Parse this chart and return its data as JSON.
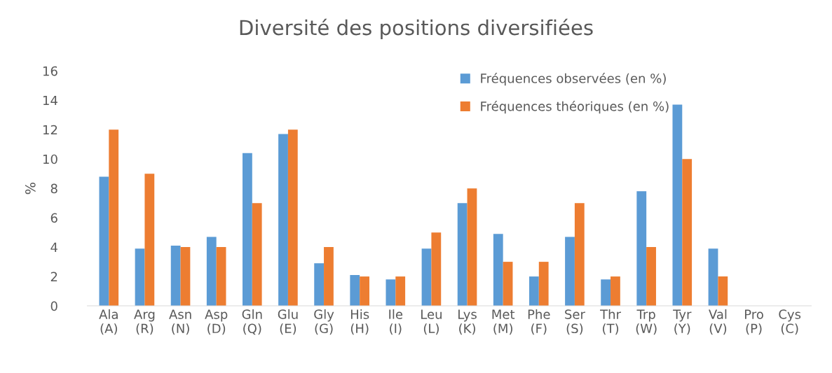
{
  "chart_data": {
    "type": "bar",
    "title": "Diversité des positions diversifiées",
    "ylabel": "%",
    "categories": [
      "Ala\n(A)",
      "Arg\n(R)",
      "Asn\n(N)",
      "Asp\n(D)",
      "Gln\n(Q)",
      "Glu\n(E)",
      "Gly\n(G)",
      "His\n(H)",
      "Ile\n(I)",
      "Leu\n(L)",
      "Lys\n(K)",
      "Met\n(M)",
      "Phe\n(F)",
      "Ser\n(S)",
      "Thr\n(T)",
      "Trp\n(W)",
      "Tyr\n(Y)",
      "Val\n(V)",
      "Pro\n(P)",
      "Cys\n(C)"
    ],
    "series": [
      {
        "name": "Fréquences observées (en %)",
        "color": "#5b9bd5",
        "values": [
          8.8,
          3.9,
          4.1,
          4.7,
          10.4,
          11.7,
          2.9,
          2.1,
          1.8,
          3.9,
          7.0,
          4.9,
          2.0,
          4.7,
          1.8,
          7.8,
          13.7,
          3.9,
          0,
          0
        ]
      },
      {
        "name": "Fréquences théoriques (en %)",
        "color": "#ed7d31",
        "values": [
          12,
          9,
          4,
          4,
          7,
          12,
          4,
          2,
          2,
          5,
          8,
          3,
          3,
          7,
          2,
          4,
          10,
          2,
          0,
          0
        ]
      }
    ],
    "ylim": [
      0,
      16
    ],
    "yticks": [
      0,
      2,
      4,
      6,
      8,
      10,
      12,
      14,
      16
    ],
    "grid": false,
    "legend": "top right"
  }
}
